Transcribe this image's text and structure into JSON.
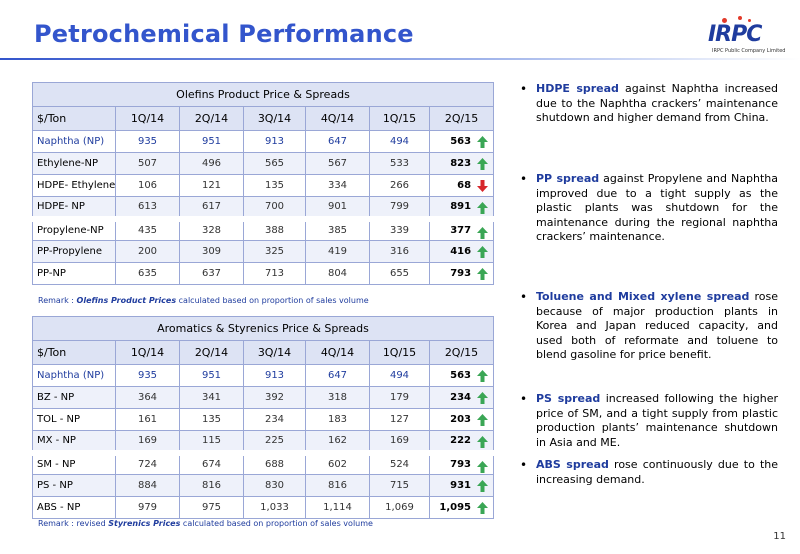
{
  "title": "Petrochemical Performance",
  "logo": {
    "text": "IRPC",
    "subtitle": "IRPC Public Company Limited"
  },
  "olefins": {
    "caption": "Olefins Product Price & Spreads",
    "headers": [
      "$/Ton",
      "1Q/14",
      "2Q/14",
      "3Q/14",
      "4Q/14",
      "1Q/15",
      "2Q/15"
    ],
    "rows": [
      {
        "label": "Naphtha (NP)",
        "values": [
          "935",
          "951",
          "913",
          "647",
          "494",
          "563"
        ],
        "trend": "up"
      },
      {
        "label": "Ethylene-NP",
        "values": [
          "507",
          "496",
          "565",
          "567",
          "533",
          "823"
        ],
        "trend": "up"
      },
      {
        "label": "HDPE- Ethylene",
        "values": [
          "106",
          "121",
          "135",
          "334",
          "266",
          "68"
        ],
        "trend": "down"
      },
      {
        "label": "HDPE- NP",
        "values": [
          "613",
          "617",
          "700",
          "901",
          "799",
          "891"
        ],
        "trend": "up"
      },
      {
        "label": "Propylene-NP",
        "values": [
          "435",
          "328",
          "388",
          "385",
          "339",
          "377"
        ],
        "trend": "up"
      },
      {
        "label": "PP-Propylene",
        "values": [
          "200",
          "309",
          "325",
          "419",
          "316",
          "416"
        ],
        "trend": "up"
      },
      {
        "label": "PP-NP",
        "values": [
          "635",
          "637",
          "713",
          "804",
          "655",
          "793"
        ],
        "trend": "up"
      }
    ],
    "remark_prefix": "Remark : ",
    "remark_em": "Olefins Product Prices",
    "remark_suffix": " calculated based on proportion of sales volume"
  },
  "aromatics": {
    "caption": "Aromatics & Styrenics Price & Spreads",
    "headers": [
      "$/Ton",
      "1Q/14",
      "2Q/14",
      "3Q/14",
      "4Q/14",
      "1Q/15",
      "2Q/15"
    ],
    "rows": [
      {
        "label": "Naphtha (NP)",
        "values": [
          "935",
          "951",
          "913",
          "647",
          "494",
          "563"
        ],
        "trend": "up"
      },
      {
        "label": "BZ - NP",
        "values": [
          "364",
          "341",
          "392",
          "318",
          "179",
          "234"
        ],
        "trend": "up"
      },
      {
        "label": "TOL - NP",
        "values": [
          "161",
          "135",
          "234",
          "183",
          "127",
          "203"
        ],
        "trend": "up"
      },
      {
        "label": "MX - NP",
        "values": [
          "169",
          "115",
          "225",
          "162",
          "169",
          "222"
        ],
        "trend": "up"
      },
      {
        "label": "SM - NP",
        "values": [
          "724",
          "674",
          "688",
          "602",
          "524",
          "793"
        ],
        "trend": "up"
      },
      {
        "label": "PS - NP",
        "values": [
          "884",
          "816",
          "830",
          "816",
          "715",
          "931"
        ],
        "trend": "up"
      },
      {
        "label": "ABS - NP",
        "values": [
          "979",
          "975",
          "1,033",
          "1,114",
          "1,069",
          "1,095"
        ],
        "trend": "up"
      }
    ],
    "remark_prefix": "Remark : revised ",
    "remark_em": "Styrenics Prices",
    "remark_suffix": " calculated based on proportion of sales volume"
  },
  "bullets": [
    {
      "keyword": "HDPE spread",
      "text": " against Naphtha increased due to the Naphtha crackers’ maintenance shutdown and higher demand from China."
    },
    {
      "keyword": "PP spread",
      "text": " against Propylene and Naphtha improved due to a tight supply as the plastic plants was shutdown for the maintenance during the regional naphtha crackers’ maintenance."
    },
    {
      "keyword": "Toluene and Mixed xylene spread",
      "text": " rose because of major production plants in Korea and Japan reduced capacity, and used both of reformate and toluene to blend gasoline for price benefit."
    },
    {
      "keyword": "PS spread",
      "text": " increased following the higher price of SM, and a tight supply from plastic production plants’ maintenance shutdown in Asia and ME."
    },
    {
      "keyword": "ABS spread",
      "text": " rose continuously  due to the increasing demand."
    }
  ],
  "page_number": "11",
  "colors": {
    "accent": "#3355cc",
    "up_arrow": "#3aa655",
    "down_arrow": "#d6262b",
    "header_fill": "#dde3f4"
  }
}
